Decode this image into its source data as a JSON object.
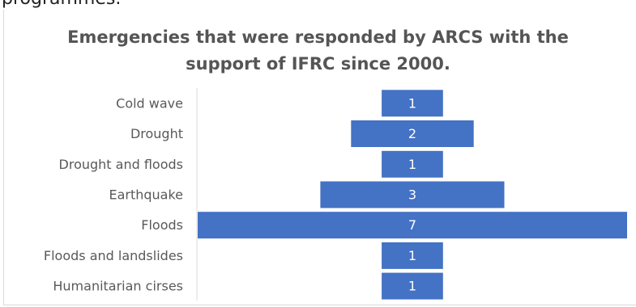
{
  "top_fragment": "programmes.",
  "chart_data": {
    "type": "bar",
    "orientation": "horizontal",
    "layout": "centered (funnel)",
    "title_line1": "Emergencies that were responded by ARCS with the",
    "title_line2": "support of IFRC since 2000.",
    "categories": [
      "Cold wave",
      "Drought",
      "Drought and floods",
      "Earthquake",
      "Floods",
      "Floods and landslides",
      "Humanitarian cirses"
    ],
    "values": [
      1,
      2,
      1,
      3,
      7,
      1,
      1
    ],
    "xlabel": "",
    "ylabel": "",
    "grid": false,
    "legend": "none",
    "bar_color": "#4472C4",
    "label_color": "#FFFFFF"
  }
}
